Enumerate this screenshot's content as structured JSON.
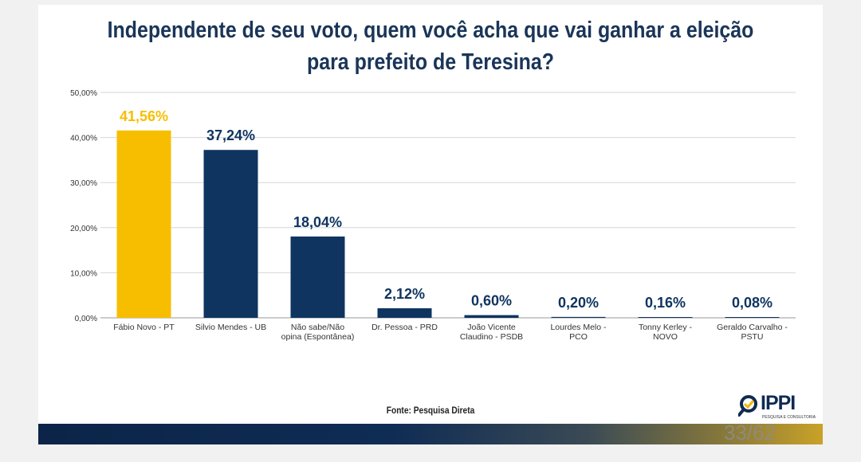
{
  "title_line1": "Independente de seu voto, quem você acha que vai ganhar a eleição",
  "title_line2": "para prefeito de Teresina?",
  "source": "Fonte: Pesquisa Direta",
  "logo": {
    "name": "IPPI",
    "tagline": "PESQUISA E CONSULTORIA",
    "icon": "magnifier-check-icon"
  },
  "page_number": "33/62",
  "colors": {
    "highlight": "#F7BE00",
    "primary": "#0F3460",
    "title": "#1A3558"
  },
  "chart_data": {
    "type": "bar",
    "categories": [
      [
        "Fábio Novo - PT"
      ],
      [
        "Silvio Mendes - UB"
      ],
      [
        "Não sabe/Não",
        "opina (Espontânea)"
      ],
      [
        "Dr. Pessoa - PRD"
      ],
      [
        "João Vicente",
        "Claudino - PSDB"
      ],
      [
        "Lourdes Melo -",
        "PCO"
      ],
      [
        "Tonny Kerley -",
        "NOVO"
      ],
      [
        "Geraldo Carvalho -",
        "PSTU"
      ]
    ],
    "values": [
      41.56,
      37.24,
      18.04,
      2.12,
      0.6,
      0.2,
      0.16,
      0.08
    ],
    "data_labels": [
      "41,56%",
      "37,24%",
      "18,04%",
      "2,12%",
      "0,60%",
      "0,20%",
      "0,16%",
      "0,08%"
    ],
    "highlight_index": 0,
    "yticks": [
      "0,00%",
      "10,00%",
      "20,00%",
      "30,00%",
      "40,00%",
      "50,00%"
    ],
    "ylim": [
      0,
      50
    ],
    "grid": true,
    "legend": "none"
  }
}
